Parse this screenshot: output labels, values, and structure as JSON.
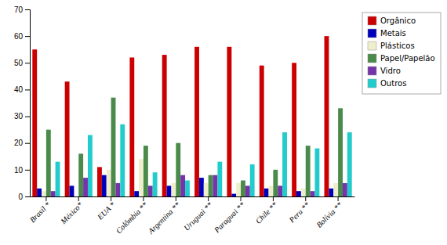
{
  "chart_data": {
    "type": "bar",
    "categories": [
      "Brasil *",
      "México*",
      "EUA *",
      "Colômbia **",
      "Argentina **",
      "Uruguai **",
      "Paraguai **",
      "Chile **",
      "Peru **",
      "Bolívia **"
    ],
    "series": [
      {
        "name": "Orgânico",
        "color": "#CC0000",
        "values": [
          55,
          43,
          11,
          52,
          53,
          56,
          56,
          49,
          50,
          60
        ]
      },
      {
        "name": "Metais",
        "color": "#0000BB",
        "values": [
          3,
          4,
          8,
          2,
          4,
          7,
          1,
          3,
          2,
          3
        ]
      },
      {
        "name": "Plásticos",
        "color": "#EEEECC",
        "values": [
          2,
          0,
          10,
          14,
          5,
          5,
          5,
          4,
          3,
          5
        ]
      },
      {
        "name": "Papel/Papelão",
        "color": "#4A8A4A",
        "values": [
          25,
          16,
          37,
          19,
          20,
          8,
          6,
          10,
          19,
          33
        ]
      },
      {
        "name": "Vidro",
        "color": "#7733AA",
        "values": [
          2,
          7,
          5,
          4,
          8,
          8,
          4,
          4,
          2,
          5
        ]
      },
      {
        "name": "Outros",
        "color": "#22CCCC",
        "values": [
          13,
          23,
          27,
          9,
          6,
          13,
          12,
          24,
          18,
          24
        ]
      }
    ],
    "ylim": [
      0,
      70
    ],
    "yticks": [
      0,
      10,
      20,
      30,
      40,
      50,
      60,
      70
    ],
    "grid": false,
    "legend": "right"
  }
}
